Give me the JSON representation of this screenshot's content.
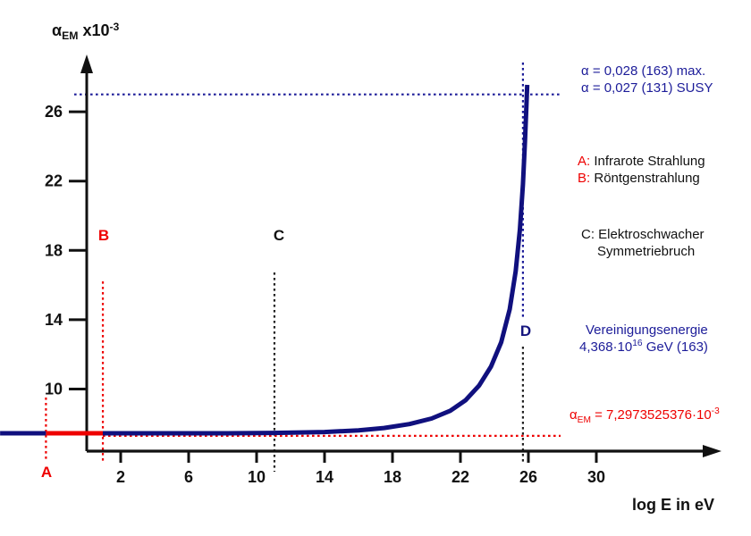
{
  "colors": {
    "curve_navy": "#10107e",
    "annotation_blue": "#1c1c99",
    "red": "#ee0000",
    "axis_black": "#111111"
  },
  "labels": {
    "alpha": "α",
    "alpha_sub": "EM",
    "y_title_mid": " x10",
    "y_title_sup": "-3"
  },
  "markers": {
    "A": {
      "label": "A",
      "x": -2.4
    },
    "B": {
      "label": "B",
      "x": 0.95
    },
    "C": {
      "label": "C",
      "x": 11.05
    },
    "D": {
      "label": "D",
      "x": 25.68
    }
  },
  "annotations": {
    "alpha_max": "α = 0,028 (163) max.",
    "alpha_susy": "α = 0,027 (131) SUSY",
    "a_prefix": "A:",
    "a_text": " Infrarote Strahlung",
    "b_prefix": "B:",
    "b_text": " Röntgenstrahlung",
    "c_line1": "C: Elektroschwacher",
    "c_line2": "Symmetriebruch",
    "unif_line1": "Vereinigungsenergie",
    "unif_line2_base": "4,368·10",
    "unif_line2_exp": "16",
    "unif_line2_rest": " GeV (163)",
    "alphaem_pre": "α",
    "alphaem_sub": "EM",
    "alphaem_mid": " = 7,2973525376·10",
    "alphaem_sup": "-3"
  },
  "chart_data": {
    "type": "line",
    "title": "",
    "xlabel": "log E in eV",
    "ylabel": "αEM x10-3",
    "x_ticks": [
      2,
      6,
      10,
      14,
      18,
      22,
      26,
      30
    ],
    "y_ticks": [
      10,
      14,
      18,
      22,
      26
    ],
    "xlim": [
      -5.1,
      37
    ],
    "ylim": [
      5.5,
      29
    ],
    "grid": false,
    "legend": "none",
    "series": [
      {
        "name": "alpha_EM running coupling (x10^-3), blue flat segment left of A",
        "color": "#10107e",
        "width": 5,
        "points": [
          [
            -5.1,
            7.45
          ],
          [
            -2.4,
            7.45
          ]
        ]
      },
      {
        "name": "A-B segment highlighted red (Infrarot bis Roentgen)",
        "color": "#ee0000",
        "width": 5,
        "points": [
          [
            -2.4,
            7.45
          ],
          [
            0.95,
            7.45
          ]
        ]
      },
      {
        "name": "alpha_EM running coupling (x10^-3), main blue curve rising to SUSY unification",
        "color": "#10107e",
        "width": 5,
        "points": [
          [
            0.95,
            7.45
          ],
          [
            4,
            7.45
          ],
          [
            8,
            7.45
          ],
          [
            11,
            7.47
          ],
          [
            14,
            7.52
          ],
          [
            16,
            7.62
          ],
          [
            17.5,
            7.75
          ],
          [
            19,
            7.98
          ],
          [
            20.3,
            8.3
          ],
          [
            21.4,
            8.75
          ],
          [
            22.3,
            9.35
          ],
          [
            23.1,
            10.2
          ],
          [
            23.8,
            11.3
          ],
          [
            24.4,
            12.7
          ],
          [
            24.9,
            14.6
          ],
          [
            25.25,
            16.8
          ],
          [
            25.5,
            19.2
          ],
          [
            25.68,
            21.8
          ],
          [
            25.8,
            24.3
          ],
          [
            25.88,
            26.2
          ],
          [
            25.93,
            27.55
          ]
        ]
      }
    ],
    "reference_lines": [
      {
        "name": "alpha = 0,027 (131) SUSY level",
        "orientation": "horizontal",
        "y": 27,
        "style": "dotted",
        "color": "#1c1c99"
      },
      {
        "name": "alpha_EM = 7,2973525376e-3 level",
        "orientation": "horizontal",
        "y": 7.3,
        "style": "dotted",
        "color": "#ee0000"
      },
      {
        "name": "A Infrarote Strahlung",
        "orientation": "vertical",
        "x": -2.4,
        "style": "dotted",
        "color": "#ee0000"
      },
      {
        "name": "B Roentgenstrahlung",
        "orientation": "vertical",
        "x": 0.95,
        "style": "dotted",
        "color": "#ee0000"
      },
      {
        "name": "C Elektroschwacher Symmetriebruch",
        "orientation": "vertical",
        "x": 11.05,
        "style": "dotted",
        "color": "#222222"
      },
      {
        "name": "D Vereinigungsenergie (upper blue part)",
        "orientation": "vertical",
        "x": 25.68,
        "style": "dotted",
        "color": "#1c1c99"
      },
      {
        "name": "D Vereinigungsenergie (lower black part)",
        "orientation": "vertical",
        "x": 25.68,
        "style": "dotted",
        "color": "#222222"
      }
    ]
  }
}
